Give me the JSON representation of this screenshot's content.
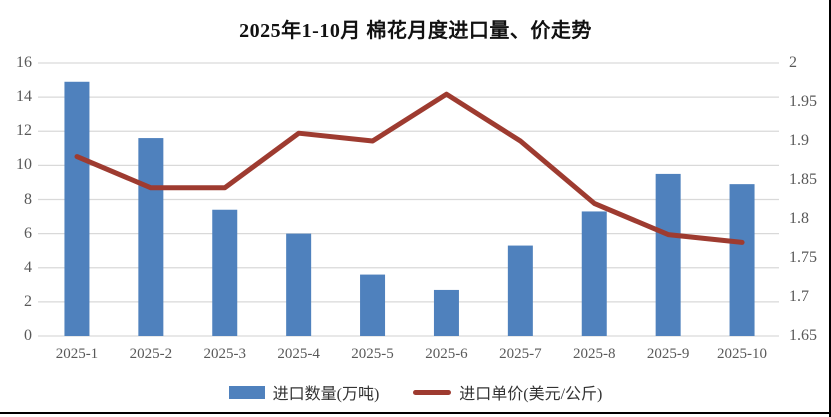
{
  "title": "2025年1-10月 棉花月度进口量、价走势",
  "colors": {
    "bar": "#4F81BD",
    "line": "#9E3B30",
    "gridline": "#D9D9D9",
    "axis_text": "#595959",
    "border": "#000000",
    "background": "#FFFFFF"
  },
  "chart_data": {
    "type": "bar+line",
    "title": "2025年1-10月 棉花月度进口量、价走势",
    "categories": [
      "2025-1",
      "2025-2",
      "2025-3",
      "2025-4",
      "2025-5",
      "2025-6",
      "2025-7",
      "2025-8",
      "2025-9",
      "2025-10"
    ],
    "series": [
      {
        "name": "进口数量(万吨)",
        "type": "bar",
        "axis": "left",
        "color": "#4F81BD",
        "values": [
          14.9,
          11.6,
          7.4,
          6.0,
          3.6,
          2.7,
          5.3,
          7.3,
          9.5,
          8.9
        ]
      },
      {
        "name": "进口单价(美元/公斤)",
        "type": "line",
        "axis": "right",
        "color": "#9E3B30",
        "values": [
          1.88,
          1.84,
          1.84,
          1.91,
          1.9,
          1.96,
          1.9,
          1.82,
          1.78,
          1.77
        ]
      }
    ],
    "left_axis": {
      "range": [
        0,
        16
      ],
      "ticks": [
        0,
        2,
        4,
        6,
        8,
        10,
        12,
        14,
        16
      ],
      "tick_labels": [
        "0",
        "2",
        "4",
        "6",
        "8",
        "10",
        "12",
        "14",
        "16"
      ]
    },
    "right_axis": {
      "range": [
        1.65,
        2.0
      ],
      "ticks": [
        1.65,
        1.7,
        1.75,
        1.8,
        1.85,
        1.9,
        1.95,
        2.0
      ],
      "tick_labels": [
        "1.65",
        "1.7",
        "1.75",
        "1.8",
        "1.85",
        "1.9",
        "1.95",
        "2"
      ]
    },
    "grid": true,
    "legend_position": "bottom"
  },
  "legend": {
    "items": [
      {
        "label": "进口数量(万吨)",
        "swatch": "bar-swatch",
        "color": "#4F81BD"
      },
      {
        "label": "进口单价(美元/公斤)",
        "swatch": "line-swatch",
        "color": "#9E3B30"
      }
    ]
  }
}
